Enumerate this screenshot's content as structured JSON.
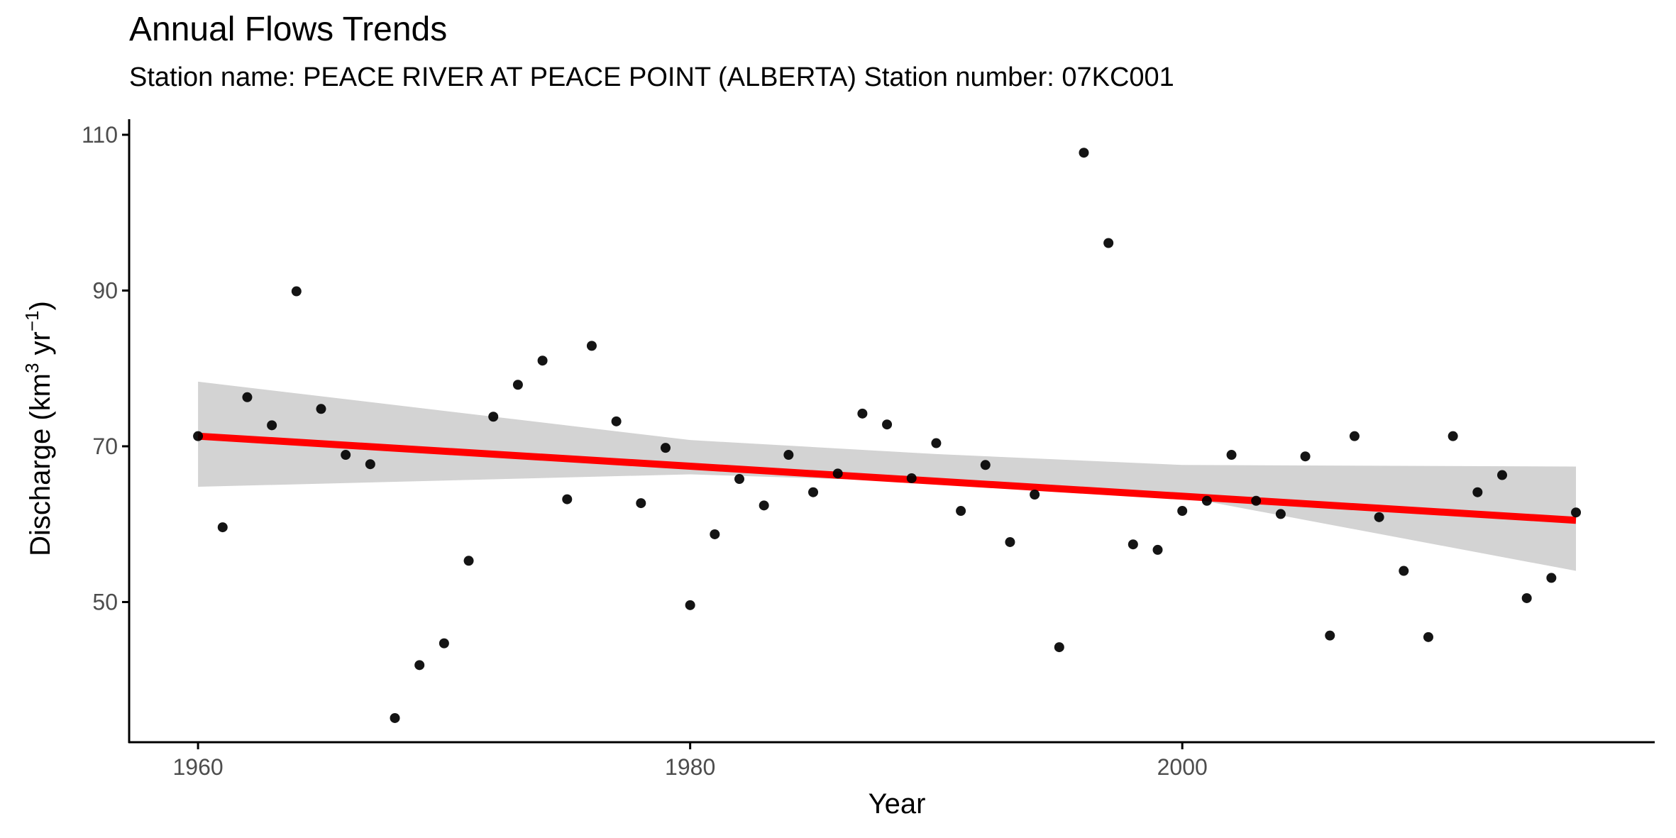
{
  "chart_data": {
    "type": "scatter",
    "title": "Annual Flows Trends",
    "subtitle": "Station name: PEACE RIVER AT PEACE POINT (ALBERTA) Station number: 07KC001",
    "xlabel": "Year",
    "ylabel_main": "Discharge (km",
    "ylabel_sup1": "3",
    "ylabel_mid": " yr",
    "ylabel_sup2": "−1",
    "ylabel_end": ")",
    "xlim": [
      1957.2,
      2019.2
    ],
    "ylim": [
      32.0,
      112.0
    ],
    "x_ticks": [
      1960,
      1980,
      2000
    ],
    "y_ticks": [
      50,
      70,
      90,
      110
    ],
    "grid": false,
    "colors": {
      "points": "#000000",
      "trend": "#ff0000",
      "band": "#d3d3d3",
      "axis": "#000000"
    },
    "series": [
      {
        "x": [
          1960,
          1961,
          1962,
          1963,
          1964,
          1965,
          1966,
          1967,
          1968,
          1969,
          1970,
          1971,
          1972,
          1973,
          1974,
          1975,
          1976,
          1977,
          1978,
          1979,
          1980,
          1981,
          1982,
          1983,
          1984,
          1985,
          1986,
          1987,
          1988,
          1989,
          1990,
          1991,
          1992,
          1993,
          1994,
          1995,
          1996,
          1997,
          1998,
          1999,
          2000,
          2001,
          2002,
          2003,
          2004,
          2005,
          2006,
          2007,
          2008,
          2009,
          2010,
          2011,
          2012,
          2013,
          2014,
          2015,
          2016
        ],
        "y": [
          71.3,
          59.6,
          76.3,
          72.7,
          89.9,
          74.8,
          68.9,
          67.7,
          35.1,
          41.9,
          44.7,
          55.3,
          73.8,
          77.9,
          81.0,
          63.2,
          82.9,
          73.2,
          62.7,
          69.8,
          49.6,
          58.7,
          65.8,
          62.4,
          68.9,
          64.1,
          66.5,
          74.2,
          72.8,
          65.9,
          70.4,
          61.7,
          67.6,
          57.7,
          63.8,
          44.2,
          107.7,
          96.1,
          57.4,
          56.7,
          61.7,
          63.0,
          68.9,
          63.0,
          61.3,
          68.7,
          45.7,
          71.3,
          60.9,
          54.0,
          45.5,
          71.3,
          64.1,
          66.3,
          50.5,
          53.1,
          61.5
        ]
      }
    ],
    "trend": {
      "x": [
        1960,
        2016
      ],
      "y": [
        71.3,
        60.5
      ]
    },
    "confidence_band": {
      "x": [
        1960,
        1980,
        1990,
        2000,
        2016
      ],
      "lower": [
        64.8,
        66.4,
        65.4,
        63.5,
        54.0
      ],
      "upper": [
        78.3,
        70.8,
        69.0,
        67.6,
        67.4
      ]
    }
  }
}
